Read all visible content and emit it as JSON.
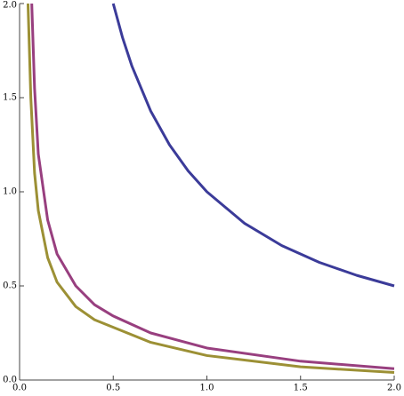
{
  "chart_data": {
    "type": "line",
    "xlim": [
      0,
      2
    ],
    "ylim": [
      0,
      2
    ],
    "xticks": [
      {
        "value": 0,
        "label": "0.0"
      },
      {
        "value": 0.5,
        "label": "0.5"
      },
      {
        "value": 1,
        "label": "1.0"
      },
      {
        "value": 1.5,
        "label": "1.5"
      },
      {
        "value": 2,
        "label": "2.0"
      }
    ],
    "yticks": [
      {
        "value": 0,
        "label": "0.0"
      },
      {
        "value": 0.5,
        "label": "0.5"
      },
      {
        "value": 1,
        "label": "1.0"
      },
      {
        "value": 1.5,
        "label": "1.5"
      },
      {
        "value": 2,
        "label": "2.0"
      }
    ],
    "series": [
      {
        "color": "#3b3b99",
        "x": [
          0.5,
          0.55,
          0.6,
          0.7,
          0.8,
          0.9,
          1,
          1.2,
          1.4,
          1.6,
          1.8,
          2
        ],
        "values": [
          2,
          1.818,
          1.667,
          1.429,
          1.25,
          1.111,
          1,
          0.833,
          0.714,
          0.625,
          0.556,
          0.5
        ]
      },
      {
        "color": "#983f7f",
        "x": [
          0.065,
          0.08,
          0.1,
          0.15,
          0.2,
          0.3,
          0.4,
          0.5,
          0.7,
          1,
          1.5,
          2
        ],
        "values": [
          2,
          1.55,
          1.2,
          0.85,
          0.67,
          0.5,
          0.4,
          0.34,
          0.25,
          0.17,
          0.1,
          0.06
        ]
      },
      {
        "color": "#9c9035",
        "x": [
          0.045,
          0.06,
          0.08,
          0.1,
          0.15,
          0.2,
          0.3,
          0.4,
          0.5,
          0.7,
          1,
          1.5,
          2
        ],
        "values": [
          2,
          1.5,
          1.1,
          0.9,
          0.65,
          0.52,
          0.39,
          0.32,
          0.28,
          0.2,
          0.13,
          0.07,
          0.04
        ]
      }
    ]
  }
}
